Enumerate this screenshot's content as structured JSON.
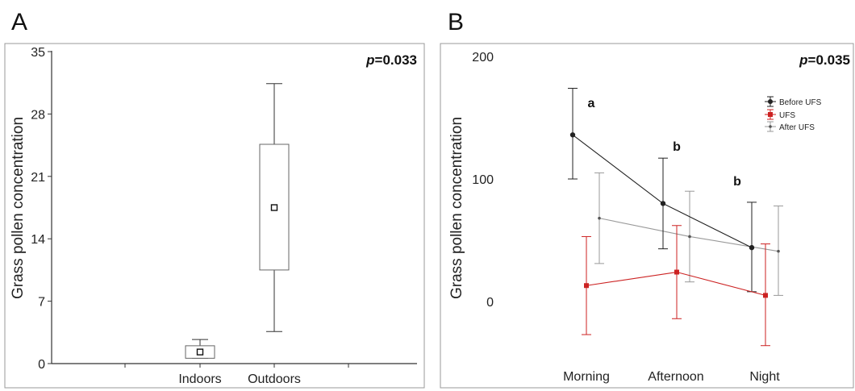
{
  "chart_data": [
    {
      "panel": "A",
      "type": "box",
      "ylabel": "Grass pollen concentration",
      "ylim": [
        0,
        35
      ],
      "yticks": [
        "0",
        "7",
        "14",
        "21",
        "28",
        "35"
      ],
      "categories": [
        "Indoors",
        "Outdoors"
      ],
      "boxes": [
        {
          "category": "Indoors",
          "whisker_low": 0.6,
          "q1": 0.6,
          "median": 1.3,
          "q3": 2.0,
          "whisker_high": 2.7
        },
        {
          "category": "Outdoors",
          "whisker_low": 3.6,
          "q1": 10.5,
          "median": 17.5,
          "q3": 24.6,
          "whisker_high": 31.4
        }
      ],
      "p_label": "p",
      "p_value": "=0.033",
      "grid": false
    },
    {
      "panel": "B",
      "type": "line",
      "ylabel": "Grass pollen concentration",
      "ylim": [
        -58,
        200
      ],
      "yticks": [
        "0",
        "100",
        "200"
      ],
      "categories": [
        "Morning",
        "Afternoon",
        "Night"
      ],
      "series": [
        {
          "name": "Before UFS",
          "color": "#222222",
          "marker": "circle",
          "values": [
            136,
            80,
            44
          ],
          "err_low": [
            100,
            43,
            8
          ],
          "err_high": [
            174,
            117,
            81
          ]
        },
        {
          "name": "UFS",
          "color": "#cc2222",
          "marker": "square",
          "values": [
            13,
            24,
            5
          ],
          "err_low": [
            -27,
            -14,
            -36
          ],
          "err_high": [
            53,
            62,
            47
          ]
        },
        {
          "name": "After UFS",
          "color": "#999999",
          "marker": "small-dot",
          "values": [
            68,
            53,
            41
          ],
          "err_low": [
            31,
            16,
            5
          ],
          "err_high": [
            105,
            90,
            78
          ]
        }
      ],
      "annotations": [
        "a",
        "b",
        "b"
      ],
      "legend_position": "top-right",
      "p_label": "p",
      "p_value": "=0.035",
      "grid": false
    }
  ],
  "panels": {
    "a": {
      "letter": "A"
    },
    "b": {
      "letter": "B"
    }
  }
}
